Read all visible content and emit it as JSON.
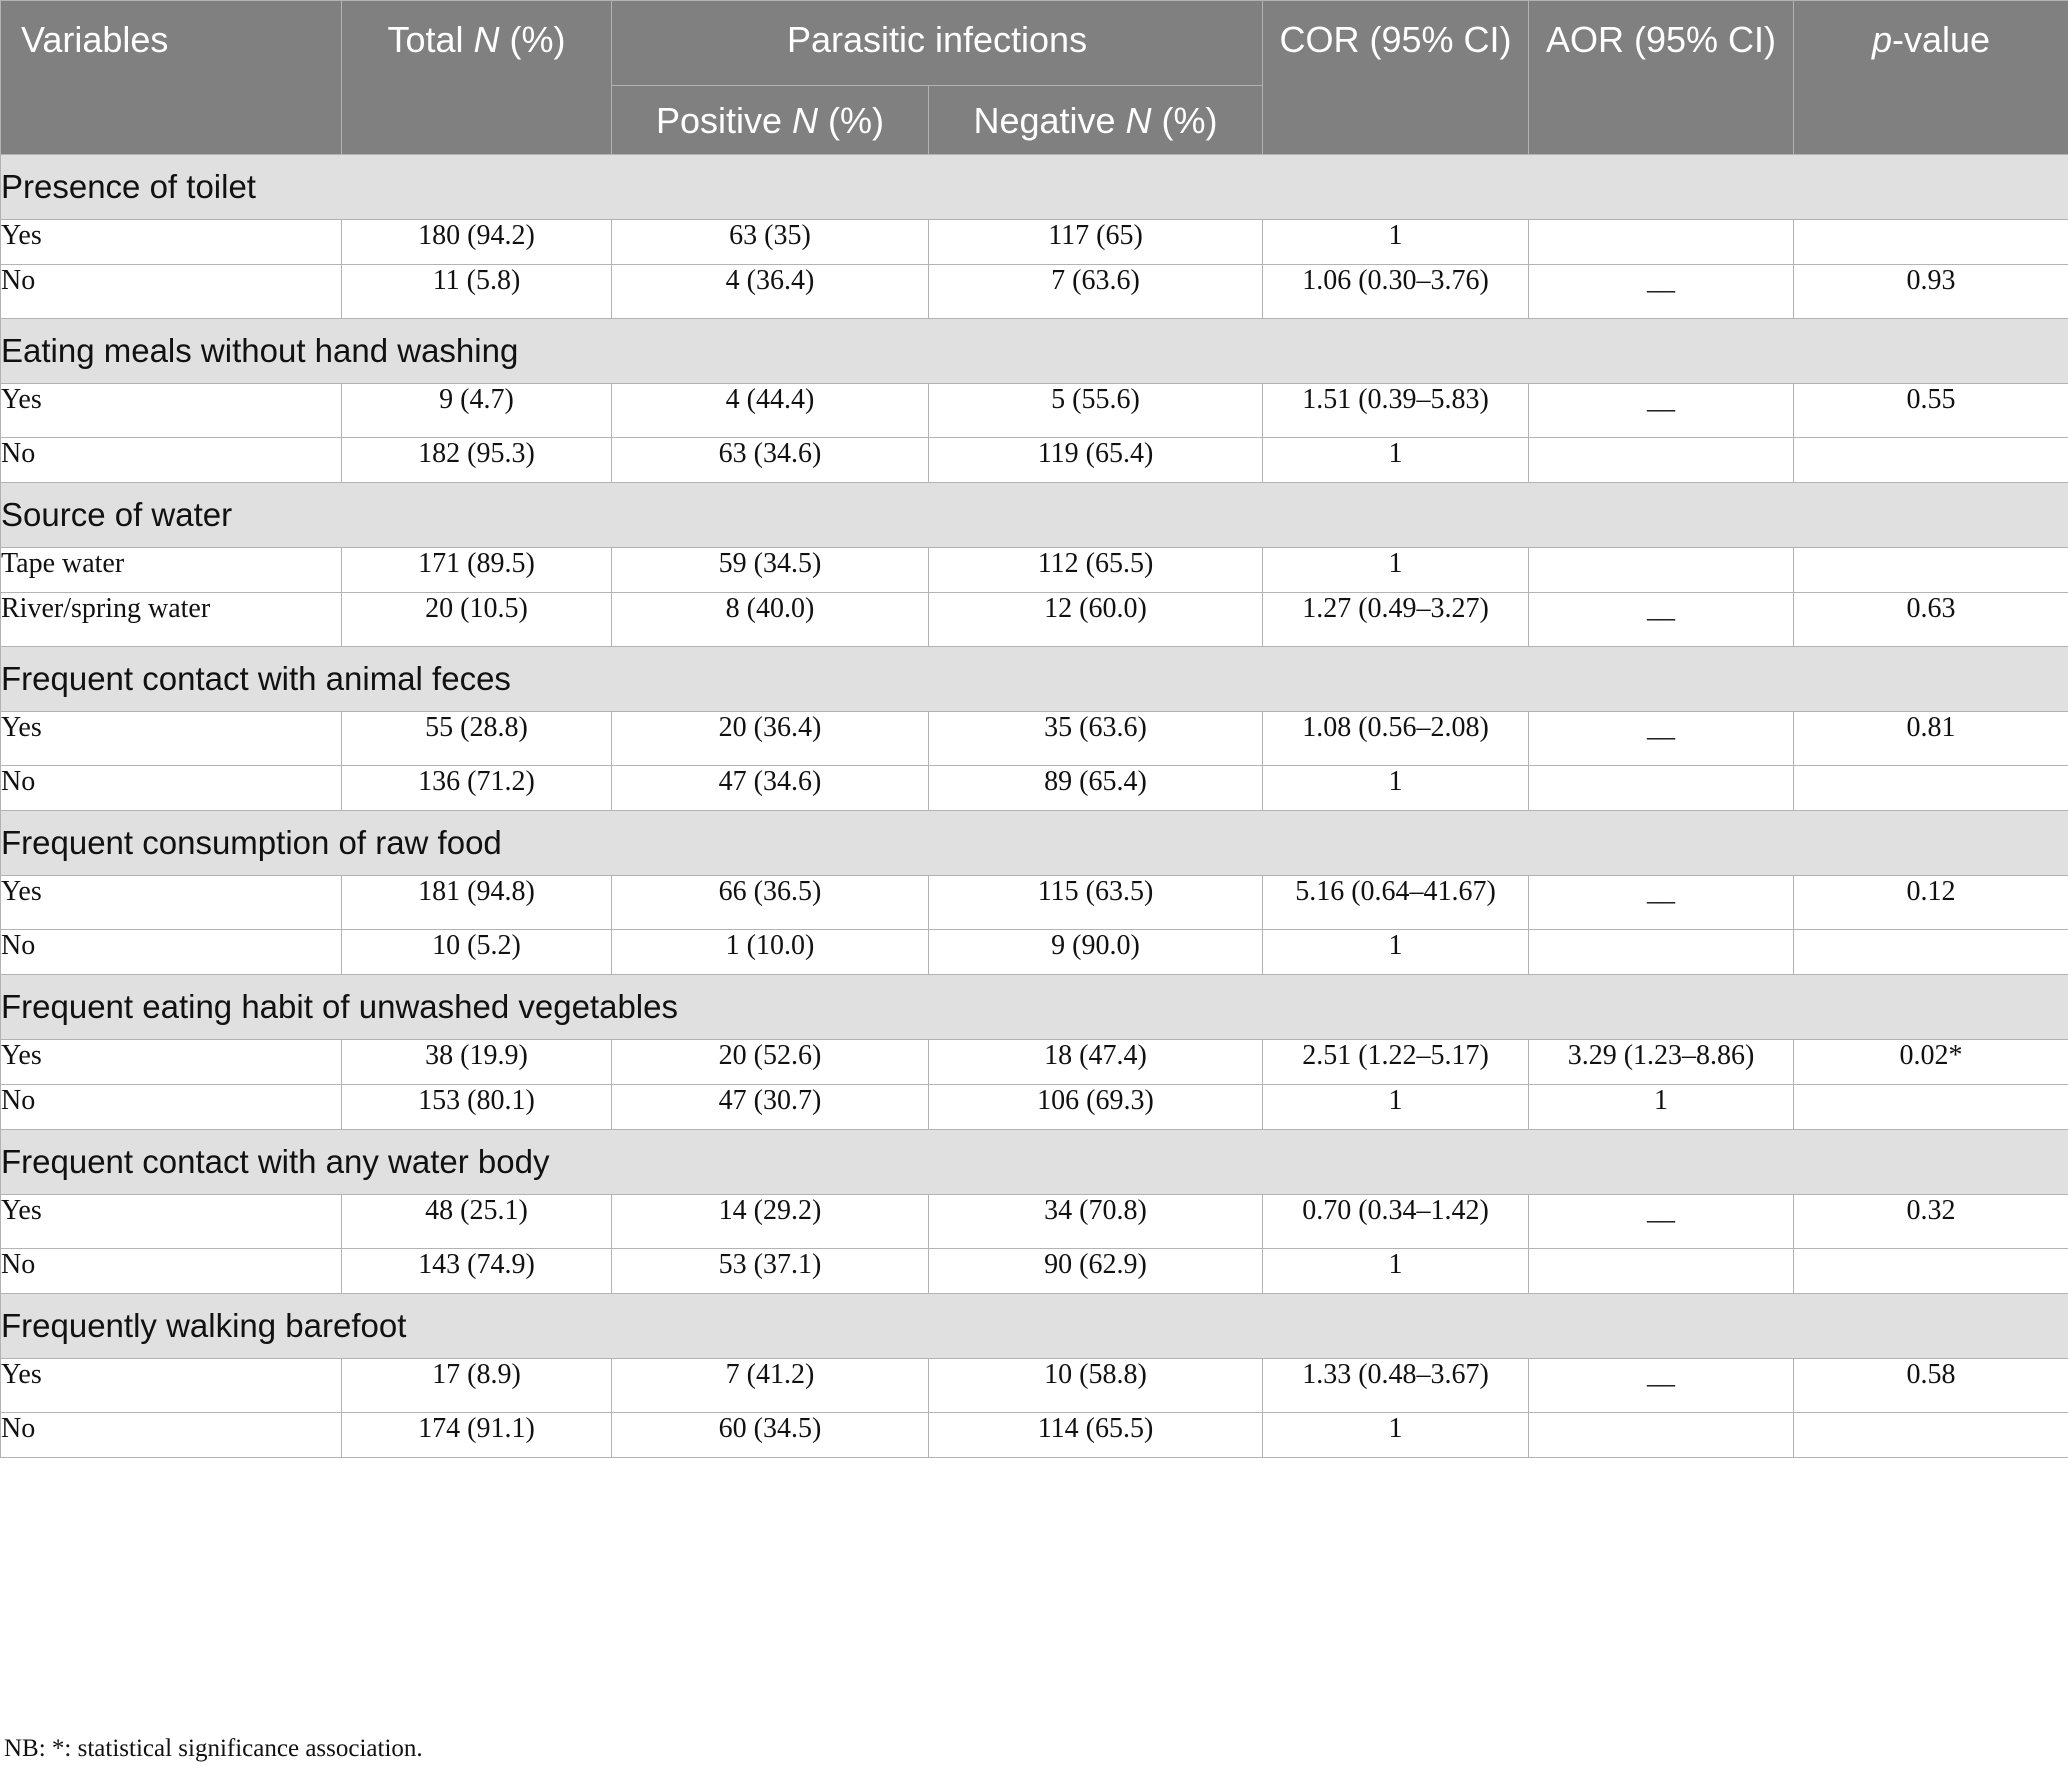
{
  "header": {
    "variables": "Variables",
    "total_prefix": "Total ",
    "n_italic": "N",
    "pct_suffix": " (%)",
    "parasitic_infections": "Parasitic infections",
    "positive_prefix": "Positive ",
    "negative_prefix": "Negative ",
    "cor": "COR (95% CI)",
    "aor": "AOR (95% CI)",
    "p_italic": "p",
    "p_suffix": "-value"
  },
  "sections": [
    {
      "title": "Presence of toilet",
      "rows": [
        {
          "label": "Yes",
          "total": "180 (94.2)",
          "positive": "63 (35)",
          "negative": "117 (65)",
          "cor": "1",
          "aor": "",
          "p": ""
        },
        {
          "label": "No",
          "total": "11 (5.8)",
          "positive": "4 (36.4)",
          "negative": "7 (63.6)",
          "cor": "1.06 (0.30–3.76)",
          "aor": "__",
          "p": "0.93"
        }
      ]
    },
    {
      "title": "Eating meals without hand washing",
      "rows": [
        {
          "label": "Yes",
          "total": "9 (4.7)",
          "positive": "4 (44.4)",
          "negative": "5 (55.6)",
          "cor": "1.51 (0.39–5.83)",
          "aor": "__",
          "p": "0.55"
        },
        {
          "label": "No",
          "total": "182 (95.3)",
          "positive": "63 (34.6)",
          "negative": "119 (65.4)",
          "cor": "1",
          "aor": "",
          "p": ""
        }
      ]
    },
    {
      "title": "Source of water",
      "rows": [
        {
          "label": "Tape water",
          "total": "171 (89.5)",
          "positive": "59 (34.5)",
          "negative": "112 (65.5)",
          "cor": "1",
          "aor": "",
          "p": ""
        },
        {
          "label": "River/spring water",
          "total": "20 (10.5)",
          "positive": "8 (40.0)",
          "negative": "12 (60.0)",
          "cor": "1.27 (0.49–3.27)",
          "aor": "__",
          "p": "0.63"
        }
      ]
    },
    {
      "title": "Frequent contact with animal feces",
      "rows": [
        {
          "label": "Yes",
          "total": "55 (28.8)",
          "positive": "20 (36.4)",
          "negative": "35 (63.6)",
          "cor": "1.08 (0.56–2.08)",
          "aor": "__",
          "p": "0.81"
        },
        {
          "label": "No",
          "total": "136 (71.2)",
          "positive": "47 (34.6)",
          "negative": "89 (65.4)",
          "cor": "1",
          "aor": "",
          "p": ""
        }
      ]
    },
    {
      "title": "Frequent consumption of raw food",
      "rows": [
        {
          "label": "Yes",
          "total": "181 (94.8)",
          "positive": "66 (36.5)",
          "negative": "115 (63.5)",
          "cor": "5.16 (0.64–41.67)",
          "aor": "__",
          "p": "0.12"
        },
        {
          "label": "No",
          "total": "10 (5.2)",
          "positive": "1 (10.0)",
          "negative": "9 (90.0)",
          "cor": "1",
          "aor": "",
          "p": ""
        }
      ]
    },
    {
      "title": "Frequent eating habit of unwashed vegetables",
      "rows": [
        {
          "label": "Yes",
          "total": "38 (19.9)",
          "positive": "20 (52.6)",
          "negative": "18 (47.4)",
          "cor": "2.51 (1.22–5.17)",
          "aor": "3.29 (1.23–8.86)",
          "p": "0.02*"
        },
        {
          "label": "No",
          "total": "153 (80.1)",
          "positive": "47 (30.7)",
          "negative": "106 (69.3)",
          "cor": "1",
          "aor": "1",
          "p": ""
        }
      ]
    },
    {
      "title": "Frequent contact with any water body",
      "rows": [
        {
          "label": "Yes",
          "total": "48 (25.1)",
          "positive": "14 (29.2)",
          "negative": "34 (70.8)",
          "cor": "0.70 (0.34–1.42)",
          "aor": "__",
          "p": "0.32"
        },
        {
          "label": "No",
          "total": "143 (74.9)",
          "positive": "53 (37.1)",
          "negative": "90 (62.9)",
          "cor": "1",
          "aor": "",
          "p": ""
        }
      ]
    },
    {
      "title": "Frequently walking barefoot",
      "rows": [
        {
          "label": "Yes",
          "total": "17 (8.9)",
          "positive": "7 (41.2)",
          "negative": "10 (58.8)",
          "cor": "1.33 (0.48–3.67)",
          "aor": "__",
          "p": "0.58"
        },
        {
          "label": "No",
          "total": "174 (91.1)",
          "positive": "60 (34.5)",
          "negative": "114 (65.5)",
          "cor": "1",
          "aor": "",
          "p": ""
        }
      ]
    }
  ],
  "footnote": "NB: *: statistical significance association."
}
